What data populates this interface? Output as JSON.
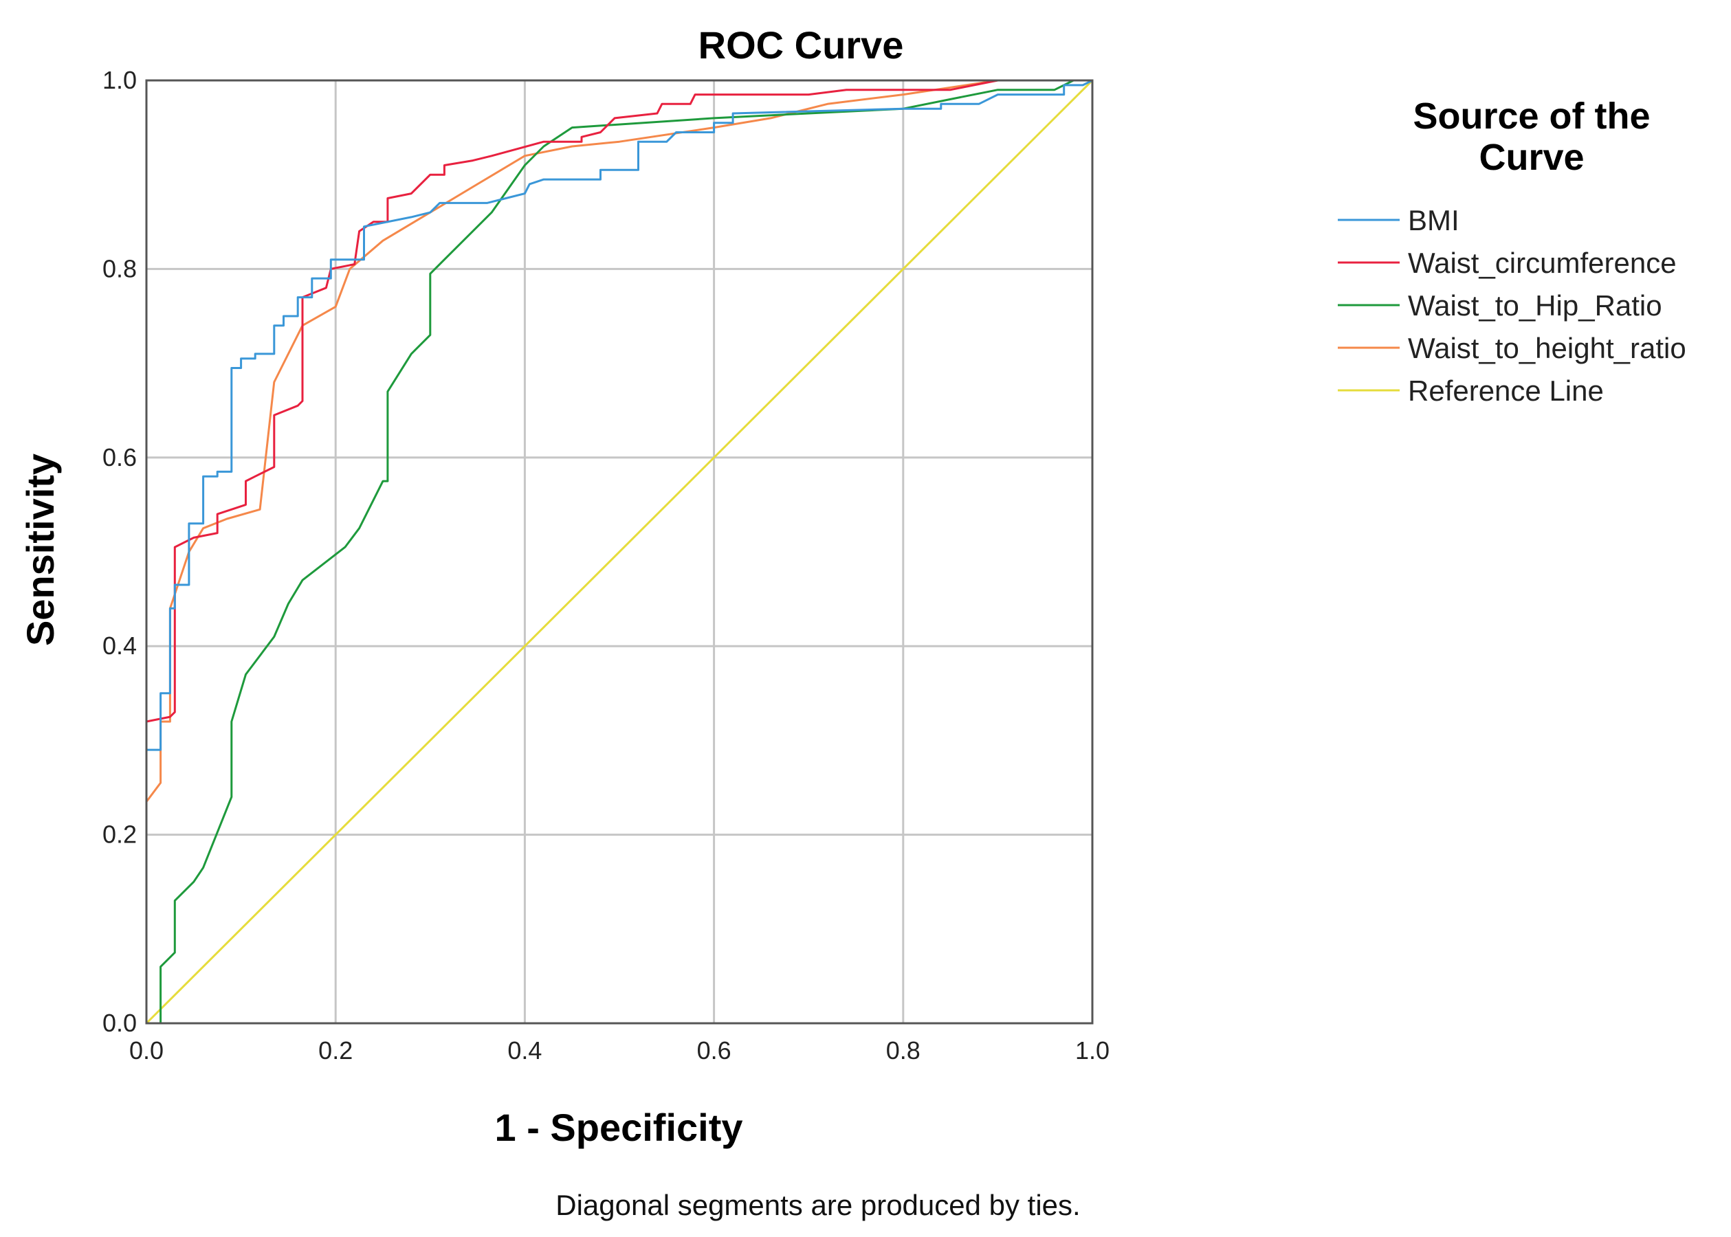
{
  "chart_data": {
    "type": "line",
    "title": "ROC Curve",
    "xlabel": "1 - Specificity",
    "ylabel": "Sensitivity",
    "xlim": [
      0,
      1
    ],
    "ylim": [
      0,
      1
    ],
    "xticks": [
      "0.0",
      "0.2",
      "0.4",
      "0.6",
      "0.8",
      "1.0"
    ],
    "yticks": [
      "0.0",
      "0.2",
      "0.4",
      "0.6",
      "0.8",
      "1.0"
    ],
    "grid": true,
    "legend_title": "Source of the Curve",
    "legend_title_lines": [
      "Source of the",
      "Curve"
    ],
    "legend_position": "right",
    "footnote": "Diagonal segments are produced by ties.",
    "series": [
      {
        "name": "BMI",
        "color": "#3a97d8",
        "points": [
          [
            0,
            0
          ],
          [
            0,
            0.29
          ],
          [
            0.015,
            0.29
          ],
          [
            0.015,
            0.35
          ],
          [
            0.025,
            0.35
          ],
          [
            0.025,
            0.44
          ],
          [
            0.03,
            0.44
          ],
          [
            0.03,
            0.465
          ],
          [
            0.045,
            0.465
          ],
          [
            0.045,
            0.53
          ],
          [
            0.06,
            0.53
          ],
          [
            0.06,
            0.58
          ],
          [
            0.075,
            0.58
          ],
          [
            0.075,
            0.585
          ],
          [
            0.09,
            0.585
          ],
          [
            0.09,
            0.695
          ],
          [
            0.1,
            0.695
          ],
          [
            0.1,
            0.705
          ],
          [
            0.115,
            0.705
          ],
          [
            0.115,
            0.71
          ],
          [
            0.135,
            0.71
          ],
          [
            0.135,
            0.74
          ],
          [
            0.145,
            0.74
          ],
          [
            0.145,
            0.75
          ],
          [
            0.16,
            0.75
          ],
          [
            0.16,
            0.77
          ],
          [
            0.175,
            0.77
          ],
          [
            0.175,
            0.79
          ],
          [
            0.195,
            0.79
          ],
          [
            0.195,
            0.81
          ],
          [
            0.23,
            0.81
          ],
          [
            0.23,
            0.845
          ],
          [
            0.28,
            0.855
          ],
          [
            0.3,
            0.86
          ],
          [
            0.31,
            0.87
          ],
          [
            0.36,
            0.87
          ],
          [
            0.38,
            0.875
          ],
          [
            0.4,
            0.88
          ],
          [
            0.405,
            0.89
          ],
          [
            0.42,
            0.895
          ],
          [
            0.48,
            0.895
          ],
          [
            0.48,
            0.905
          ],
          [
            0.52,
            0.905
          ],
          [
            0.52,
            0.935
          ],
          [
            0.55,
            0.935
          ],
          [
            0.56,
            0.945
          ],
          [
            0.6,
            0.945
          ],
          [
            0.6,
            0.955
          ],
          [
            0.62,
            0.955
          ],
          [
            0.62,
            0.965
          ],
          [
            0.8,
            0.97
          ],
          [
            0.84,
            0.97
          ],
          [
            0.84,
            0.975
          ],
          [
            0.88,
            0.975
          ],
          [
            0.9,
            0.985
          ],
          [
            0.97,
            0.985
          ],
          [
            0.97,
            0.995
          ],
          [
            0.99,
            0.995
          ],
          [
            1,
            1
          ]
        ]
      },
      {
        "name": "Waist_circumference",
        "color": "#e8213f",
        "points": [
          [
            0,
            0
          ],
          [
            0,
            0.32
          ],
          [
            0.025,
            0.325
          ],
          [
            0.03,
            0.33
          ],
          [
            0.03,
            0.505
          ],
          [
            0.05,
            0.515
          ],
          [
            0.075,
            0.52
          ],
          [
            0.075,
            0.54
          ],
          [
            0.09,
            0.545
          ],
          [
            0.105,
            0.55
          ],
          [
            0.105,
            0.575
          ],
          [
            0.115,
            0.58
          ],
          [
            0.135,
            0.59
          ],
          [
            0.135,
            0.645
          ],
          [
            0.16,
            0.655
          ],
          [
            0.165,
            0.66
          ],
          [
            0.165,
            0.77
          ],
          [
            0.19,
            0.78
          ],
          [
            0.195,
            0.8
          ],
          [
            0.22,
            0.805
          ],
          [
            0.225,
            0.84
          ],
          [
            0.24,
            0.85
          ],
          [
            0.255,
            0.85
          ],
          [
            0.255,
            0.875
          ],
          [
            0.28,
            0.88
          ],
          [
            0.29,
            0.89
          ],
          [
            0.3,
            0.9
          ],
          [
            0.315,
            0.9
          ],
          [
            0.315,
            0.91
          ],
          [
            0.345,
            0.915
          ],
          [
            0.365,
            0.92
          ],
          [
            0.42,
            0.935
          ],
          [
            0.46,
            0.935
          ],
          [
            0.46,
            0.94
          ],
          [
            0.48,
            0.945
          ],
          [
            0.495,
            0.96
          ],
          [
            0.54,
            0.965
          ],
          [
            0.545,
            0.975
          ],
          [
            0.575,
            0.975
          ],
          [
            0.58,
            0.985
          ],
          [
            0.64,
            0.985
          ],
          [
            0.7,
            0.985
          ],
          [
            0.74,
            0.99
          ],
          [
            0.85,
            0.99
          ],
          [
            0.9,
            1
          ],
          [
            1,
            1
          ]
        ]
      },
      {
        "name": "Waist_to_Hip_Ratio",
        "color": "#1e9a3c",
        "points": [
          [
            0,
            0
          ],
          [
            0.015,
            0
          ],
          [
            0.015,
            0.06
          ],
          [
            0.03,
            0.075
          ],
          [
            0.03,
            0.13
          ],
          [
            0.05,
            0.15
          ],
          [
            0.06,
            0.165
          ],
          [
            0.09,
            0.24
          ],
          [
            0.09,
            0.32
          ],
          [
            0.105,
            0.37
          ],
          [
            0.135,
            0.41
          ],
          [
            0.15,
            0.445
          ],
          [
            0.165,
            0.47
          ],
          [
            0.21,
            0.505
          ],
          [
            0.225,
            0.525
          ],
          [
            0.25,
            0.575
          ],
          [
            0.255,
            0.575
          ],
          [
            0.255,
            0.67
          ],
          [
            0.28,
            0.71
          ],
          [
            0.3,
            0.73
          ],
          [
            0.3,
            0.795
          ],
          [
            0.32,
            0.815
          ],
          [
            0.365,
            0.86
          ],
          [
            0.4,
            0.91
          ],
          [
            0.42,
            0.93
          ],
          [
            0.45,
            0.95
          ],
          [
            0.6,
            0.96
          ],
          [
            0.7,
            0.965
          ],
          [
            0.8,
            0.97
          ],
          [
            0.85,
            0.98
          ],
          [
            0.9,
            0.99
          ],
          [
            0.96,
            0.99
          ],
          [
            0.98,
            1
          ],
          [
            1,
            1
          ]
        ]
      },
      {
        "name": "Waist_to_height_ratio",
        "color": "#f5884a",
        "points": [
          [
            0,
            0
          ],
          [
            0,
            0.235
          ],
          [
            0.015,
            0.255
          ],
          [
            0.015,
            0.32
          ],
          [
            0.025,
            0.32
          ],
          [
            0.025,
            0.44
          ],
          [
            0.045,
            0.5
          ],
          [
            0.06,
            0.525
          ],
          [
            0.085,
            0.535
          ],
          [
            0.12,
            0.545
          ],
          [
            0.135,
            0.68
          ],
          [
            0.165,
            0.74
          ],
          [
            0.2,
            0.76
          ],
          [
            0.215,
            0.8
          ],
          [
            0.25,
            0.83
          ],
          [
            0.3,
            0.86
          ],
          [
            0.35,
            0.89
          ],
          [
            0.4,
            0.92
          ],
          [
            0.45,
            0.93
          ],
          [
            0.5,
            0.935
          ],
          [
            0.6,
            0.95
          ],
          [
            0.66,
            0.96
          ],
          [
            0.72,
            0.975
          ],
          [
            0.8,
            0.985
          ],
          [
            0.9,
            1
          ],
          [
            1,
            1
          ]
        ]
      },
      {
        "name": "Reference Line",
        "color": "#e6dc3c",
        "points": [
          [
            0,
            0
          ],
          [
            1,
            1
          ]
        ]
      }
    ]
  }
}
